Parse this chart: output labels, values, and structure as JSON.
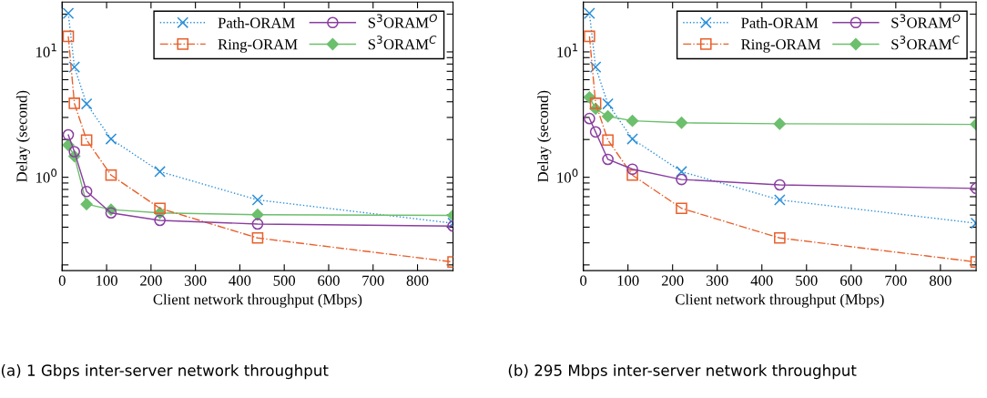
{
  "chart_data": [
    {
      "type": "line",
      "xlabel": "Client network throughput (Mbps)",
      "ylabel": "Delay (second)",
      "log": "y",
      "legend": "top right",
      "grid": false,
      "x": [
        13.75,
        27.5,
        55,
        110,
        220,
        440,
        880
      ],
      "xlim": [
        0,
        880
      ],
      "xticks": [
        0,
        100,
        200,
        300,
        400,
        500,
        600,
        700,
        800
      ],
      "ylim": [
        0.18,
        25
      ],
      "yticks": [
        {
          "value": 0.2,
          "label": null
        },
        {
          "value": 0.3,
          "label": null
        },
        {
          "value": 0.4,
          "label": null
        },
        {
          "value": 0.5,
          "label": null
        },
        {
          "value": 0.6,
          "label": null
        },
        {
          "value": 0.7,
          "label": null
        },
        {
          "value": 0.8,
          "label": null
        },
        {
          "value": 0.9,
          "label": null
        },
        {
          "value": 1,
          "label": "10$^{0}$"
        },
        {
          "value": 2,
          "label": null
        },
        {
          "value": 3,
          "label": null
        },
        {
          "value": 4,
          "label": null
        },
        {
          "value": 5,
          "label": null
        },
        {
          "value": 6,
          "label": null
        },
        {
          "value": 7,
          "label": null
        },
        {
          "value": 8,
          "label": null
        },
        {
          "value": 9,
          "label": null
        },
        {
          "value": 10,
          "label": "10$^{1}$"
        },
        {
          "value": 20,
          "label": null
        }
      ],
      "annotations": [
        "(a) 1 Gbps inter-server network throughput"
      ],
      "series": [
        {
          "name": "Path-ORAM",
          "color": "#2a8fd8",
          "marker": "cross",
          "line_style": "dotted",
          "values": [
            20.3,
            7.57,
            3.85,
            2.02,
            1.11,
            0.66,
            0.43
          ]
        },
        {
          "name": "Ring-ORAM",
          "color": "#e8602c",
          "marker": "square",
          "line_style": "dashdot",
          "values": [
            13.3,
            3.89,
            1.98,
            1.04,
            0.565,
            0.328,
            0.211
          ]
        },
        {
          "name": "S$^{3}$ORAM$^{O}$",
          "color": "#8a3ea0",
          "marker": "circle",
          "line_style": "solid",
          "values": [
            2.18,
            1.6,
            0.77,
            0.52,
            0.453,
            0.424,
            0.408
          ]
        },
        {
          "name": "S$^{3}$ORAM$^{C}$",
          "color": "#6cbf6c",
          "marker": "diamond",
          "line_style": "solid",
          "values": [
            1.81,
            1.47,
            0.61,
            0.552,
            0.52,
            0.503,
            0.497
          ]
        }
      ]
    },
    {
      "type": "line",
      "xlabel": "Client network throughput (Mbps)",
      "ylabel": "Delay (second)",
      "log": "y",
      "legend": "top right",
      "grid": false,
      "x": [
        13.75,
        27.5,
        55,
        110,
        220,
        440,
        880
      ],
      "xlim": [
        0,
        880
      ],
      "xticks": [
        0,
        100,
        200,
        300,
        400,
        500,
        600,
        700,
        800
      ],
      "ylim": [
        0.18,
        25
      ],
      "yticks": [
        {
          "value": 0.2,
          "label": null
        },
        {
          "value": 0.3,
          "label": null
        },
        {
          "value": 0.4,
          "label": null
        },
        {
          "value": 0.5,
          "label": null
        },
        {
          "value": 0.6,
          "label": null
        },
        {
          "value": 0.7,
          "label": null
        },
        {
          "value": 0.8,
          "label": null
        },
        {
          "value": 0.9,
          "label": null
        },
        {
          "value": 1,
          "label": "10$^{0}$"
        },
        {
          "value": 2,
          "label": null
        },
        {
          "value": 3,
          "label": null
        },
        {
          "value": 4,
          "label": null
        },
        {
          "value": 5,
          "label": null
        },
        {
          "value": 6,
          "label": null
        },
        {
          "value": 7,
          "label": null
        },
        {
          "value": 8,
          "label": null
        },
        {
          "value": 9,
          "label": null
        },
        {
          "value": 10,
          "label": "10$^{1}$"
        },
        {
          "value": 20,
          "label": null
        }
      ],
      "annotations": [
        "(b) 295 Mbps inter-server network throughput"
      ],
      "series": [
        {
          "name": "Path-ORAM",
          "color": "#2a8fd8",
          "marker": "cross",
          "line_style": "dotted",
          "values": [
            20.3,
            7.57,
            3.85,
            2.02,
            1.11,
            0.66,
            0.43
          ]
        },
        {
          "name": "Ring-ORAM",
          "color": "#e8602c",
          "marker": "square",
          "line_style": "dashdot",
          "values": [
            13.3,
            3.89,
            1.98,
            1.04,
            0.565,
            0.328,
            0.211
          ]
        },
        {
          "name": "S$^{3}$ORAM$^{O}$",
          "color": "#8a3ea0",
          "marker": "circle",
          "line_style": "solid",
          "values": [
            2.94,
            2.3,
            1.39,
            1.16,
            0.96,
            0.87,
            0.815
          ]
        },
        {
          "name": "S$^{3}$ORAM$^{C}$",
          "color": "#6cbf6c",
          "marker": "diamond",
          "line_style": "solid",
          "values": [
            4.34,
            3.52,
            3.06,
            2.82,
            2.72,
            2.67,
            2.64
          ]
        }
      ]
    }
  ]
}
